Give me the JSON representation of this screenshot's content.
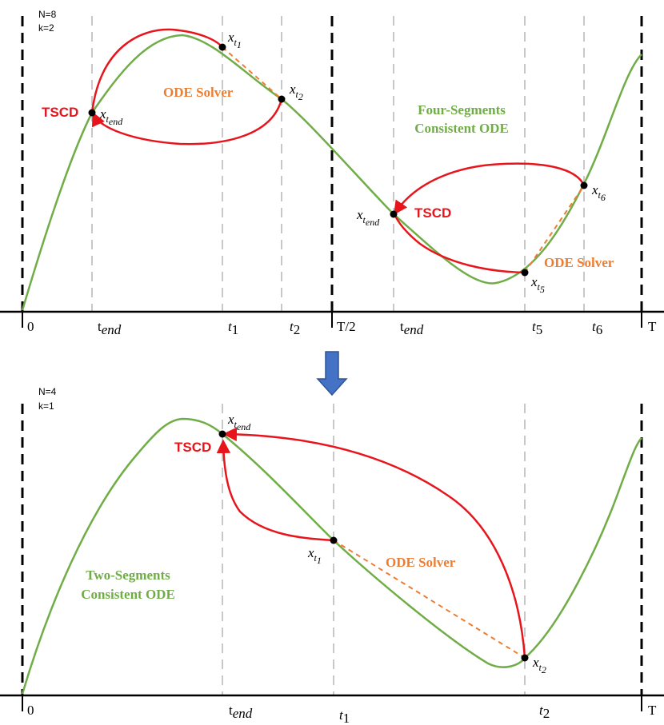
{
  "top": {
    "n": "N=8",
    "k": "k=2",
    "ticks": [
      "0",
      "t",
      "end",
      "t",
      "1",
      "t",
      "2",
      "T/2",
      "t",
      "end",
      "t",
      "5",
      "t",
      "6",
      "T"
    ],
    "tick0": "0",
    "tick_tend_base": "t",
    "tick_tend_sub": "end",
    "tick_t1_base": "t",
    "tick_t1_sub": "1",
    "tick_t2_base": "t",
    "tick_t2_sub": "2",
    "tick_half": "T/2",
    "tick_tend2_base": "t",
    "tick_tend2_sub": "end",
    "tick_t5_base": "t",
    "tick_t5_sub": "5",
    "tick_t6_base": "t",
    "tick_t6_sub": "6",
    "tick_T": "T",
    "tscd1": "TSCD",
    "tscd2": "TSCD",
    "ode1": "ODE Solver",
    "ode2": "ODE Solver",
    "green_line1": "Four-Segments",
    "green_line2": "Consistent ODE",
    "pt_x": "x",
    "pt_t": "t",
    "sub_end": "end",
    "sub_1": "1",
    "sub_2": "2",
    "sub_5": "5",
    "sub_6": "6"
  },
  "bottom": {
    "n": "N=4",
    "k": "k=1",
    "tick0": "0",
    "tick_tend_base": "t",
    "tick_tend_sub": "end",
    "tick_t1_base": "t",
    "tick_t1_sub": "1",
    "tick_t2_base": "t",
    "tick_t2_sub": "2",
    "tick_T": "T",
    "tscd": "TSCD",
    "ode": "ODE Solver",
    "green_line1": "Two-Segments",
    "green_line2": "Consistent ODE",
    "pt_x": "x",
    "pt_t": "t",
    "sub_end": "end",
    "sub_1": "1",
    "sub_2": "2"
  },
  "colors": {
    "curve": "#70ad47",
    "red": "#e8141c",
    "orange": "#ed7d31",
    "arrow": "#4472c4"
  }
}
